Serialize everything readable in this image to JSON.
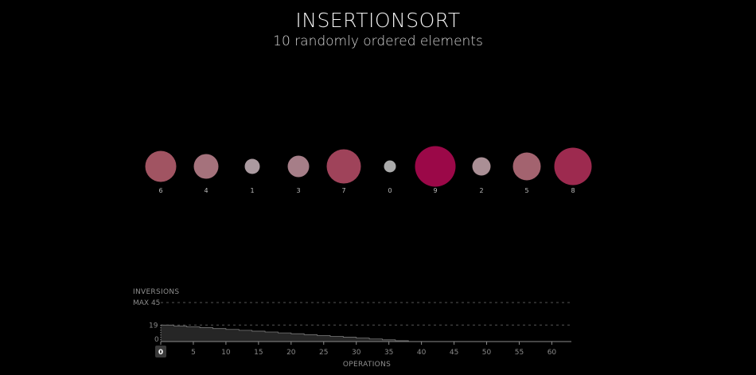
{
  "header": {
    "title": "INSERTIONSORT",
    "subtitle": "10 randomly ordered elements"
  },
  "elements": [
    {
      "value": 6,
      "label": "6",
      "color": "#a15462"
    },
    {
      "value": 4,
      "label": "4",
      "color": "#a5727c"
    },
    {
      "value": 1,
      "label": "1",
      "color": "#ab9aa0"
    },
    {
      "value": 3,
      "label": "3",
      "color": "#a67e88"
    },
    {
      "value": 7,
      "label": "7",
      "color": "#9f435a"
    },
    {
      "value": 0,
      "label": "0",
      "color": "#ababab"
    },
    {
      "value": 9,
      "label": "9",
      "color": "#9b0848"
    },
    {
      "value": 2,
      "label": "2",
      "color": "#aa8f95"
    },
    {
      "value": 5,
      "label": "5",
      "color": "#a3636f"
    },
    {
      "value": 8,
      "label": "8",
      "color": "#9d2a4f"
    }
  ],
  "chart_data": {
    "type": "area",
    "ylabel": "INVERSIONS",
    "xlabel": "OPERATIONS",
    "max_label": "MAX 45",
    "max_value": 45,
    "current_value": 19,
    "current_value_label": "19",
    "zero_label": "0",
    "current_operation": 0,
    "current_operation_label": "0",
    "xlim": [
      0,
      63
    ],
    "ylim": [
      0,
      45
    ],
    "x_ticks": [
      0,
      5,
      10,
      15,
      20,
      25,
      30,
      35,
      40,
      45,
      50,
      55,
      60
    ],
    "x": [
      0,
      1,
      2,
      3,
      4,
      5,
      6,
      7,
      8,
      9,
      10,
      11,
      12,
      13,
      14,
      15,
      16,
      17,
      18,
      19,
      20,
      21,
      22,
      23,
      24,
      25,
      26,
      27,
      28,
      29,
      30,
      31,
      32,
      33,
      34,
      35,
      36,
      37,
      38
    ],
    "y": [
      19,
      19,
      18,
      18,
      17,
      17,
      16,
      16,
      15,
      15,
      14,
      14,
      13,
      13,
      12,
      12,
      11,
      11,
      10,
      10,
      9,
      9,
      8,
      8,
      7,
      7,
      6,
      6,
      5,
      5,
      4,
      4,
      3,
      3,
      2,
      2,
      1,
      1,
      0
    ],
    "colors": {
      "area": "#262626",
      "area_line": "#7a7a7a",
      "axis": "#8a8a8a",
      "max_line": "#555555",
      "marker_bg": "#3a3a3a",
      "marker_text": "#ffffff"
    }
  }
}
